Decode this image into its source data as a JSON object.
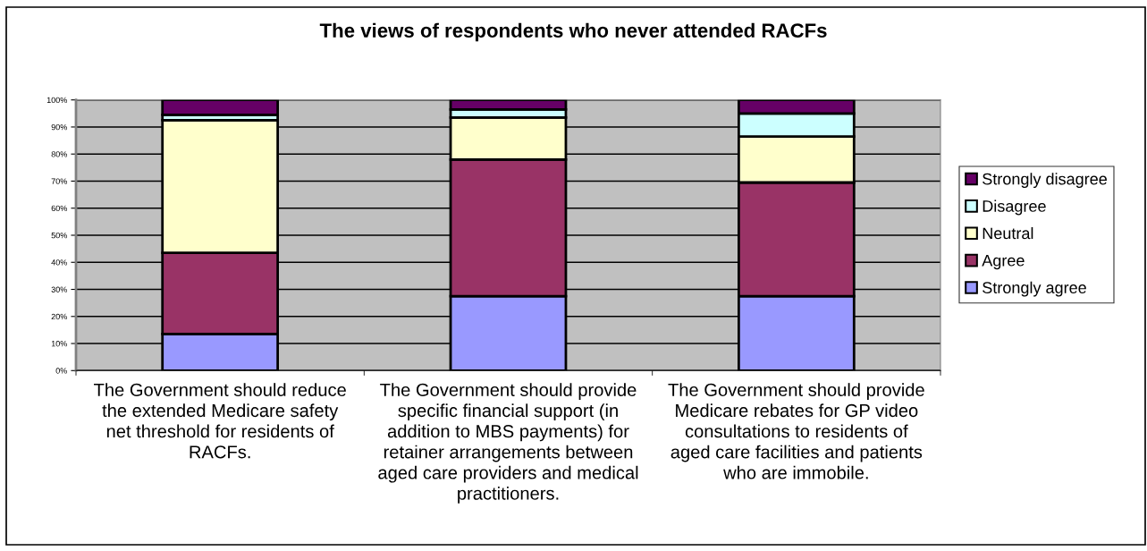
{
  "chart_data": {
    "type": "bar",
    "title": "The views of respondents who never attended RACFs",
    "categories": [
      "The Government should reduce\nthe extended Medicare safety\nnet threshold for residents of\nRACFs.",
      "The Government should provide\nspecific financial support (in\naddition to MBS payments) for\nretainer arrangements between\naged care providers and medical\npractitioners.",
      "The Government should provide\nMedicare rebates for GP video\nconsultations to residents of\naged care facilities and patients\nwho are immobile."
    ],
    "stacked": true,
    "series": [
      {
        "name": "Strongly agree",
        "color": "#9999ff",
        "values": [
          13.5,
          27.5,
          27.5
        ]
      },
      {
        "name": "Agree",
        "color": "#993366",
        "values": [
          30,
          50.5,
          42
        ]
      },
      {
        "name": "Neutral",
        "color": "#ffffcc",
        "values": [
          49,
          15.5,
          17
        ]
      },
      {
        "name": "Disagree",
        "color": "#ccffff",
        "values": [
          2,
          3,
          8.5
        ]
      },
      {
        "name": "Strongly disagree",
        "color": "#660066",
        "values": [
          5.5,
          3.5,
          5
        ]
      }
    ],
    "ylim": [
      0,
      100
    ],
    "yticks": [
      {
        "value": 0,
        "label": "0%"
      },
      {
        "value": 10,
        "label": "10%"
      },
      {
        "value": 20,
        "label": "20%"
      },
      {
        "value": 30,
        "label": "30%"
      },
      {
        "value": 40,
        "label": "40%"
      },
      {
        "value": 50,
        "label": "50%"
      },
      {
        "value": 60,
        "label": "60%"
      },
      {
        "value": 70,
        "label": "70%"
      },
      {
        "value": 80,
        "label": "80%"
      },
      {
        "value": 90,
        "label": "90%"
      },
      {
        "value": 100,
        "label": "100%"
      }
    ],
    "grid": "y",
    "legend": "right"
  }
}
